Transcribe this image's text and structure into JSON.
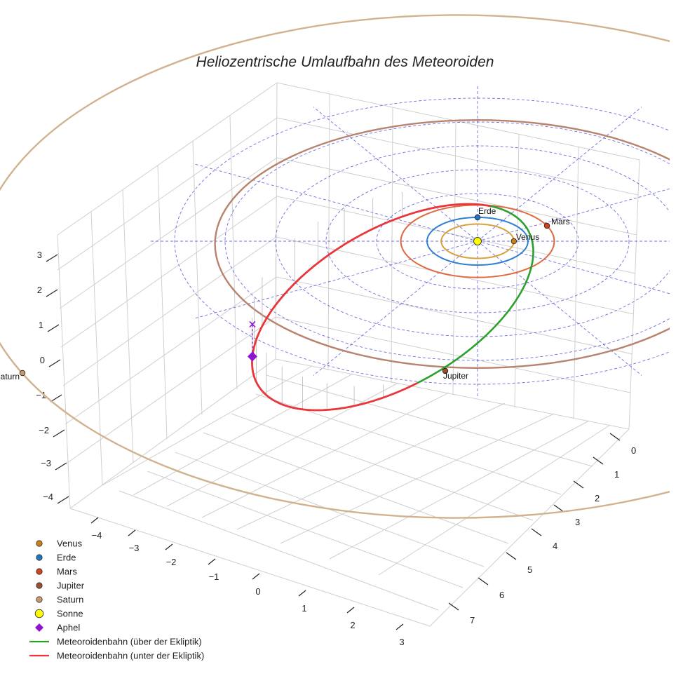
{
  "chart_data": {
    "type": "scatter",
    "title": "Heliozentrische Umlaufbahn des Meteoroiden",
    "axes": {
      "x_ticks": [
        "−4",
        "−3",
        "−2",
        "−1",
        "0",
        "1",
        "2",
        "3"
      ],
      "y_ticks": [
        "0",
        "1",
        "2",
        "3",
        "4",
        "5",
        "6",
        "7"
      ],
      "z_ticks": [
        "3",
        "2",
        "1",
        "0",
        "−1",
        "−2",
        "−3",
        "−4"
      ],
      "xlim": [
        -4.3,
        3.3
      ],
      "ylim": [
        -0.3,
        7.5
      ],
      "zlim": [
        -4.3,
        3.3
      ]
    },
    "grid": true,
    "ecliptic_grid": {
      "rings_au": [
        1,
        2,
        3,
        4,
        5,
        6
      ],
      "radial_lines": 12,
      "color": "#4a4ad6",
      "style": "dashed"
    },
    "bodies": [
      {
        "name": "Venus",
        "label": "Venus",
        "orbit_radius_au": 0.72,
        "color": "#c87f1a",
        "orbit_color": "#d9a13a"
      },
      {
        "name": "Erde",
        "label": "Erde",
        "orbit_radius_au": 1.0,
        "color": "#1f77c4",
        "orbit_color": "#2f7fd0"
      },
      {
        "name": "Mars",
        "label": "Mars",
        "orbit_radius_au": 1.52,
        "color": "#d0421b",
        "orbit_color": "#e0693f"
      },
      {
        "name": "Jupiter",
        "label": "Jupiter",
        "orbit_radius_au": 5.2,
        "color": "#9a4f33",
        "orbit_color": "#b8836e"
      },
      {
        "name": "Saturn",
        "label": "aturn",
        "orbit_radius_au": 9.5,
        "color": "#c79a6a",
        "orbit_color": "#d2b28e"
      }
    ],
    "sun": {
      "name": "Sonne",
      "color": "#ffff00"
    },
    "meteoroid_orbit": {
      "above_name": "Meteoroidenbahn (über der Ekliptik)",
      "below_name": "Meteoroidenbahn (unter der Ekliptik)",
      "above_color": "#2ca02c",
      "below_color": "#e8373a"
    },
    "aphel": {
      "name": "Aphel",
      "color": "#8e14d0"
    },
    "legend_position": "bottom-left"
  },
  "legend": [
    {
      "label": "Venus",
      "kind": "dot",
      "color": "#c87f1a"
    },
    {
      "label": "Erde",
      "kind": "dot",
      "color": "#1f77c4"
    },
    {
      "label": "Mars",
      "kind": "dot",
      "color": "#d0421b"
    },
    {
      "label": "Jupiter",
      "kind": "dot",
      "color": "#9a4f33"
    },
    {
      "label": "Saturn",
      "kind": "dot",
      "color": "#c79a6a"
    },
    {
      "label": "Sonne",
      "kind": "bigdot",
      "color": "#ffff00"
    },
    {
      "label": "Aphel",
      "kind": "diamond",
      "color": "#8e14d0"
    },
    {
      "label": "Meteoroidenbahn (über der Ekliptik)",
      "kind": "line",
      "color": "#2ca02c"
    },
    {
      "label": "Meteoroidenbahn (unter der Ekliptik)",
      "kind": "line",
      "color": "#e8373a"
    }
  ]
}
